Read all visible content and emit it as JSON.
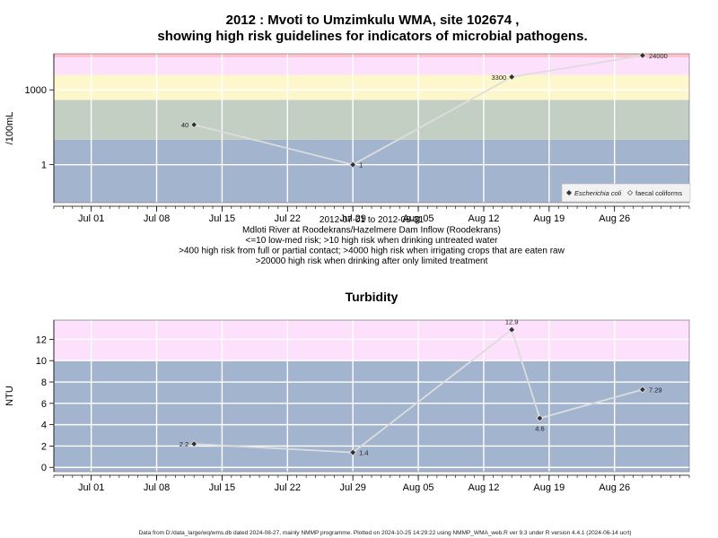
{
  "colors": {
    "background": "#ffffff",
    "band_low": "#a3b4ce",
    "band_green": "#c4cfc3",
    "band_yellow": "#fff7cc",
    "band_pink": "#fde0fb",
    "band_red": "#ffc2cc",
    "grid": "#ffffff",
    "series_line": "#dddddd",
    "marker": "#333333",
    "axis": "#000000"
  },
  "figure": {
    "title_line1": "2012 : Mvoti to Umzimkulu WMA, site 102674 ,",
    "title_line2": "showing high risk guidelines for indicators of microbial pathogens.",
    "footer": "Data from D:/data_large/wq/wms.db dated 2024-08-27, mainly NMMP programme. Plotted on 2024-10-25 14:29:22 using NMMP_WMA_web.R ver 9.3 under R version 4.4.1 (2024-06-14 ucrt)"
  },
  "chart_data": [
    {
      "type": "line",
      "title": "",
      "ylabel": "/100mL",
      "y_scale": "log10",
      "ylim": [
        0.03,
        28000
      ],
      "y_ticks": [
        1,
        1000
      ],
      "y_tick_labels": [
        "1",
        "1000"
      ],
      "xlim": [
        "2012-06-27",
        "2012-09-03"
      ],
      "x_ticks": [
        "2012-07-01",
        "2012-07-08",
        "2012-07-15",
        "2012-07-22",
        "2012-07-29",
        "2012-08-05",
        "2012-08-12",
        "2012-08-19",
        "2012-08-26"
      ],
      "x_tick_labels": [
        "Jul 01",
        "Jul 08",
        "Jul 15",
        "Jul 22",
        "Jul 29",
        "Aug 05",
        "Aug 12",
        "Aug 19",
        "Aug 26"
      ],
      "grid": true,
      "caption_lines": [
        "2012-07-01 to 2012-08-31",
        "Mdloti River at Roodekrans/Hazelmere Dam Inflow (Roodekrans)",
        "<=10 low-med risk; >10 high risk when drinking untreated water",
        ">400 high risk from full or partial contact; >4000 high risk when irrigating crops that are eaten raw",
        ">20000 high risk when drinking after only limited treatment"
      ],
      "risk_bands": [
        {
          "from": 0.03,
          "to": 10,
          "color": "#a3b4ce"
        },
        {
          "from": 10,
          "to": 400,
          "color": "#c4cfc3"
        },
        {
          "from": 400,
          "to": 4000,
          "color": "#fff7cc"
        },
        {
          "from": 4000,
          "to": 20000,
          "color": "#fde0fb"
        },
        {
          "from": 20000,
          "to": 28000,
          "color": "#ffc2cc"
        }
      ],
      "legend": {
        "position": "bottom-right",
        "items": [
          {
            "label": "Escherichia coli",
            "marker": "filled-diamond",
            "italic": true
          },
          {
            "label": "faecal coliforms",
            "marker": "open-diamond",
            "italic": false
          }
        ]
      },
      "series": [
        {
          "name": "Escherichia coli",
          "points": [
            {
              "x": "2012-07-12",
              "y": 40,
              "label": "40"
            },
            {
              "x": "2012-07-29",
              "y": 1,
              "label": "1"
            },
            {
              "x": "2012-08-15",
              "y": 3300,
              "label": "3300"
            },
            {
              "x": "2012-08-29",
              "y": 24000,
              "label": "24000"
            }
          ]
        }
      ]
    },
    {
      "type": "line",
      "title": "Turbidity",
      "ylabel": "NTU",
      "y_scale": "linear",
      "ylim": [
        -0.4,
        13.8
      ],
      "y_ticks": [
        0,
        2,
        4,
        6,
        8,
        10,
        12
      ],
      "y_tick_labels": [
        "0",
        "2",
        "4",
        "6",
        "8",
        "10",
        "12"
      ],
      "xlim": [
        "2012-06-27",
        "2012-09-03"
      ],
      "x_ticks": [
        "2012-07-01",
        "2012-07-08",
        "2012-07-15",
        "2012-07-22",
        "2012-07-29",
        "2012-08-05",
        "2012-08-12",
        "2012-08-19",
        "2012-08-26"
      ],
      "x_tick_labels": [
        "Jul 01",
        "Jul 08",
        "Jul 15",
        "Jul 22",
        "Jul 29",
        "Aug 05",
        "Aug 12",
        "Aug 19",
        "Aug 26"
      ],
      "grid": true,
      "risk_bands": [
        {
          "from": -0.4,
          "to": 10,
          "color": "#a3b4ce"
        },
        {
          "from": 10,
          "to": 13.8,
          "color": "#fde0fb"
        }
      ],
      "series": [
        {
          "points": [
            {
              "x": "2012-07-12",
              "y": 2.2,
              "label": "2.2"
            },
            {
              "x": "2012-07-29",
              "y": 1.4,
              "label": "1.4"
            },
            {
              "x": "2012-08-15",
              "y": 12.9,
              "label": "12.9"
            },
            {
              "x": "2012-08-18",
              "y": 4.6,
              "label": "4.6"
            },
            {
              "x": "2012-08-29",
              "y": 7.29,
              "label": "7.29"
            }
          ]
        }
      ]
    }
  ]
}
